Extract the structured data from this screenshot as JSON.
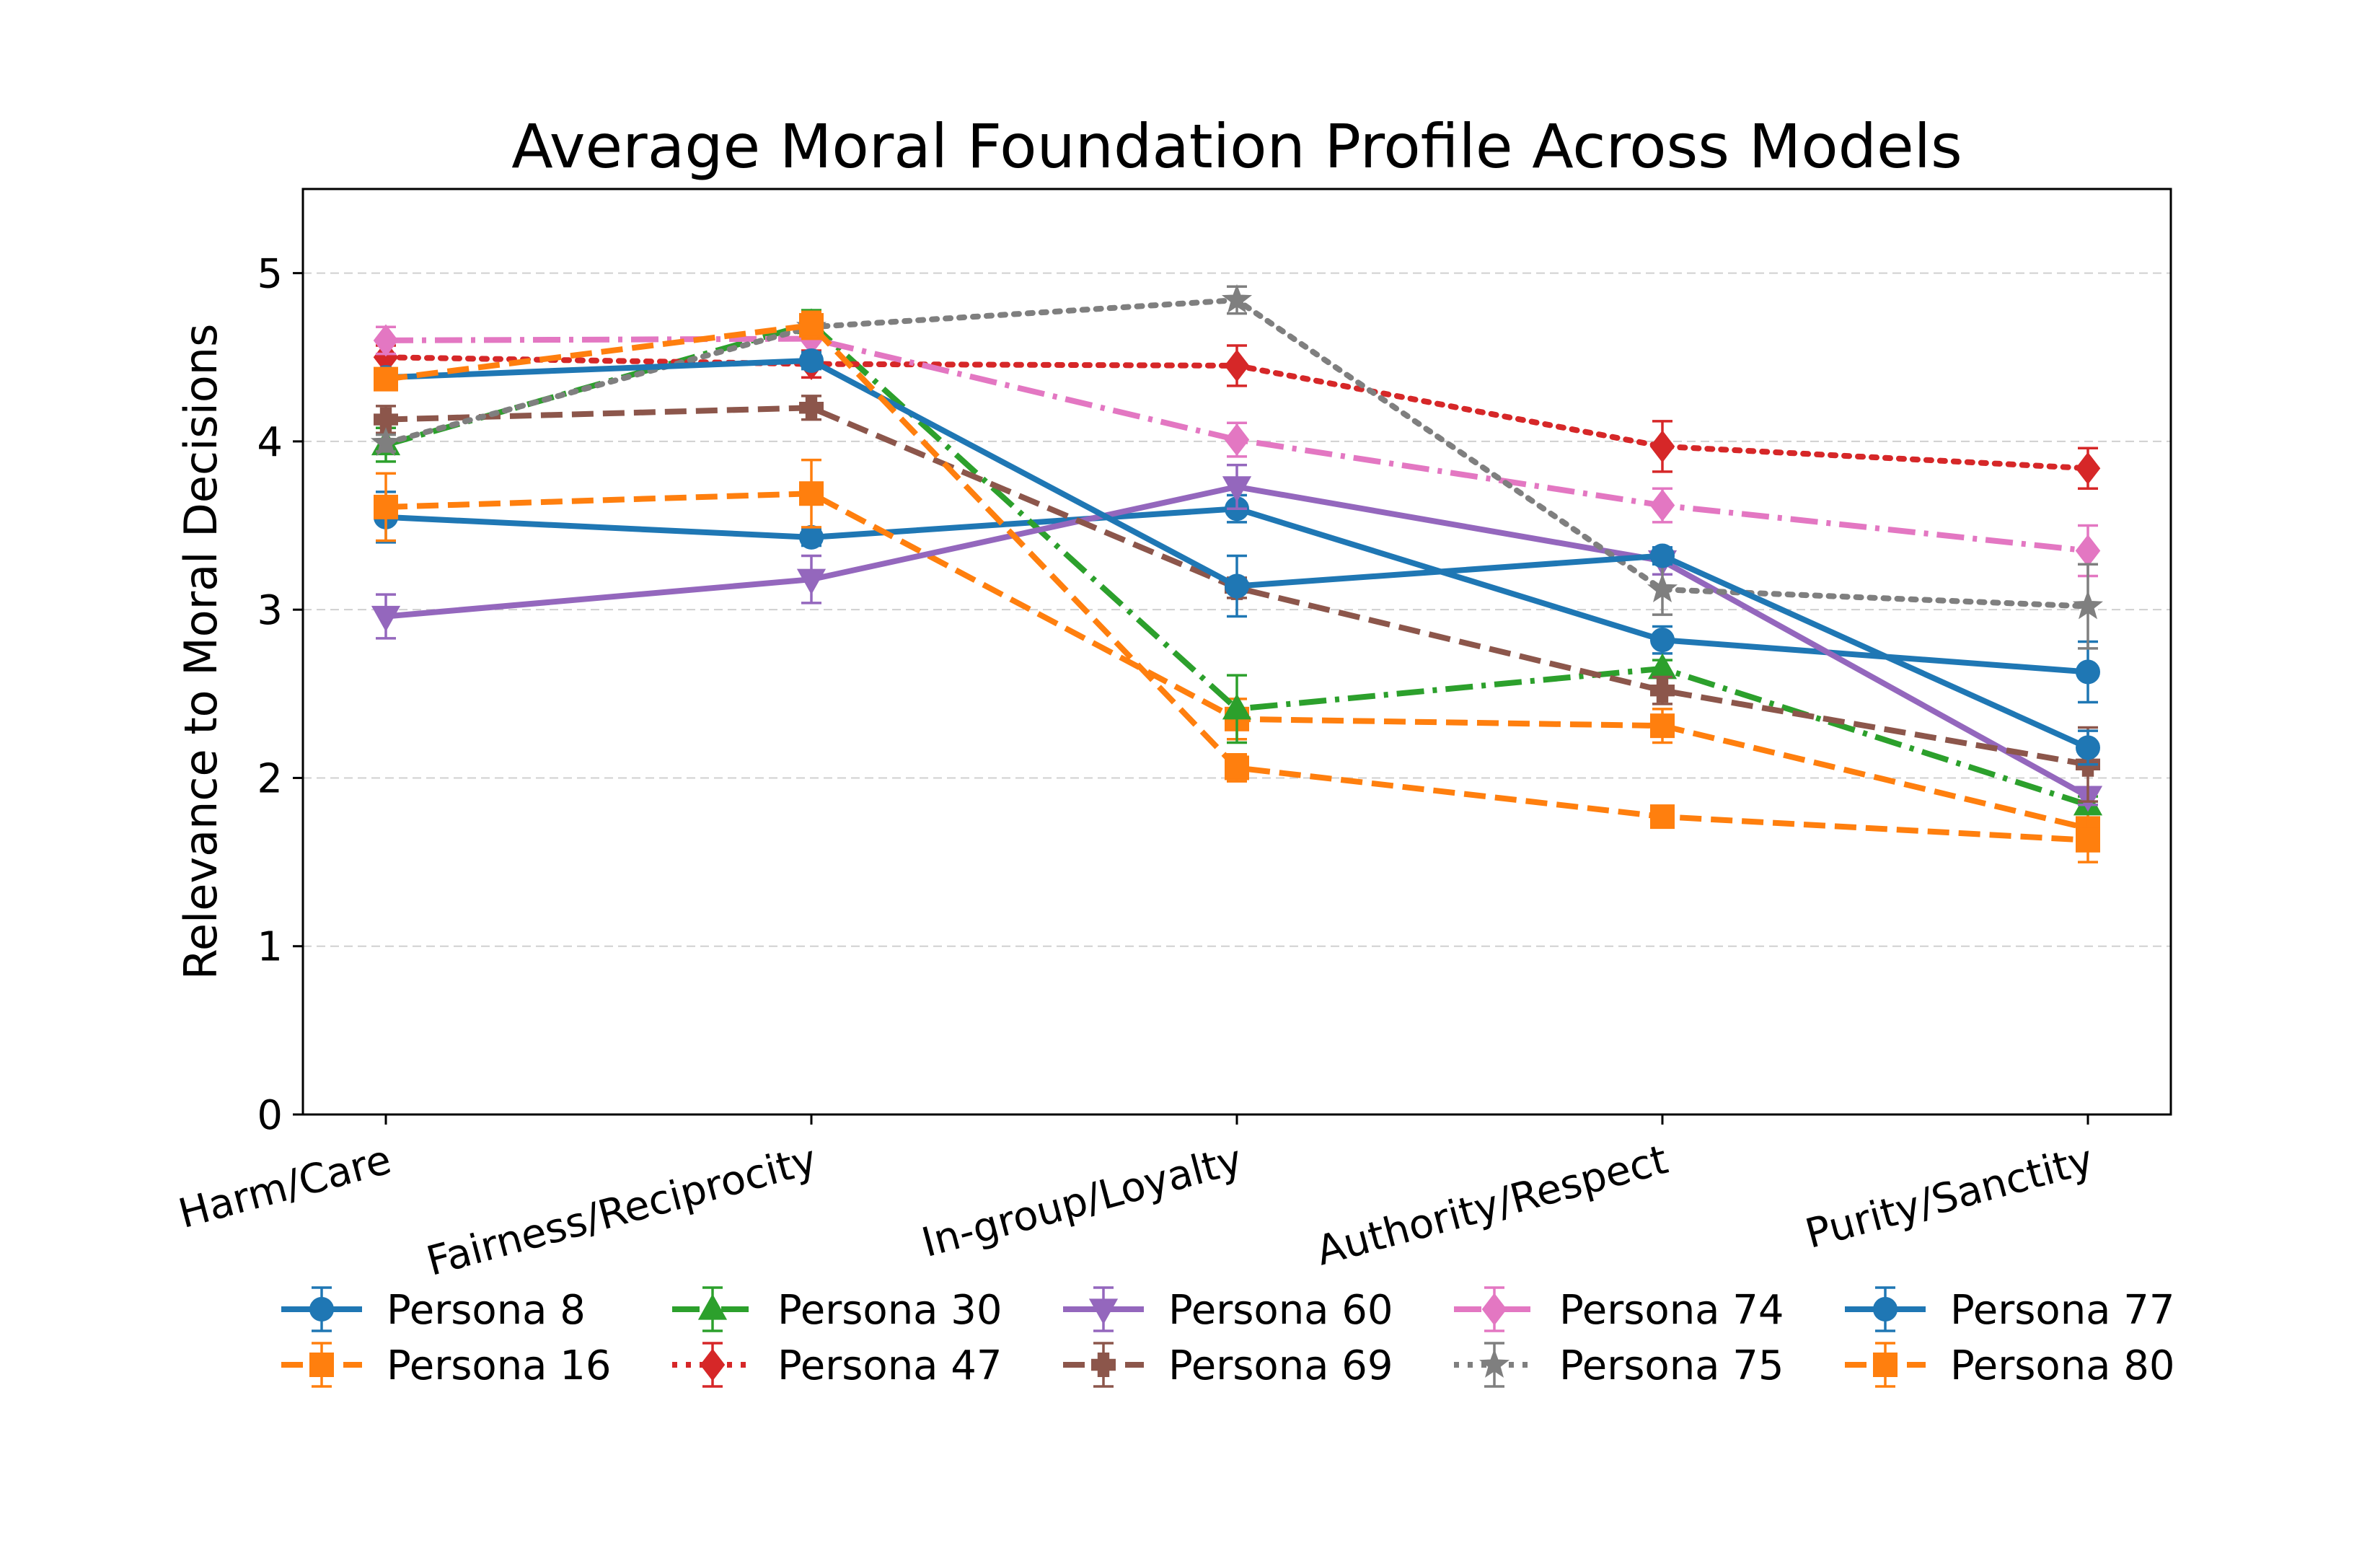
{
  "chart_data": {
    "type": "line",
    "title": "Average Moral Foundation Profile Across Models",
    "xlabel": "",
    "ylabel": "Relevance to Moral Decisions",
    "categories": [
      "Harm/Care",
      "Fairness/Reciprocity",
      "In-group/Loyalty",
      "Authority/Respect",
      "Purity/Sanctity"
    ],
    "ylim": [
      0,
      5.5
    ],
    "yticks": [
      0,
      1,
      2,
      3,
      4,
      5
    ],
    "grid": "horizontal dashed",
    "legend_position": "below plot, 5 columns",
    "series": [
      {
        "name": "Persona 8",
        "color": "#1f77b4",
        "marker": "circle",
        "linestyle": "solid",
        "values": [
          3.55,
          3.43,
          3.6,
          2.82,
          2.63
        ],
        "errors": [
          0.15,
          0.05,
          0.08,
          0.08,
          0.18
        ]
      },
      {
        "name": "Persona 16",
        "color": "#ff7f0e",
        "marker": "square",
        "linestyle": "dashed",
        "values": [
          3.61,
          3.69,
          2.35,
          2.31,
          1.7
        ],
        "errors": [
          0.2,
          0.2,
          0.12,
          0.1,
          0.1
        ]
      },
      {
        "name": "Persona 30",
        "color": "#2ca02c",
        "marker": "triangle-up",
        "linestyle": "dashdot",
        "values": [
          3.98,
          4.7,
          2.41,
          2.65,
          1.84
        ],
        "errors": [
          0.1,
          0.08,
          0.2,
          0.05,
          0.05
        ]
      },
      {
        "name": "Persona 47",
        "color": "#d62728",
        "marker": "diamond",
        "linestyle": "dotted",
        "values": [
          4.5,
          4.46,
          4.45,
          3.97,
          3.84
        ],
        "errors": [
          0.07,
          0.08,
          0.12,
          0.15,
          0.12
        ]
      },
      {
        "name": "Persona 60",
        "color": "#9467bd",
        "marker": "triangle-down",
        "linestyle": "solid",
        "values": [
          2.96,
          3.18,
          3.73,
          3.29,
          1.89
        ],
        "errors": [
          0.13,
          0.14,
          0.13,
          0.08,
          0.05
        ]
      },
      {
        "name": "Persona 69",
        "color": "#8c564b",
        "marker": "plus",
        "linestyle": "dashed",
        "values": [
          4.13,
          4.2,
          3.13,
          2.52,
          2.08
        ],
        "errors": [
          0.08,
          0.07,
          0.06,
          0.08,
          0.22
        ]
      },
      {
        "name": "Persona 74",
        "color": "#e377c2",
        "marker": "diamond",
        "linestyle": "dashdot",
        "values": [
          4.6,
          4.61,
          4.01,
          3.62,
          3.35
        ],
        "errors": [
          0.08,
          0.08,
          0.1,
          0.1,
          0.15
        ]
      },
      {
        "name": "Persona 75",
        "color": "#7f7f7f",
        "marker": "star",
        "linestyle": "dotted",
        "values": [
          3.99,
          4.68,
          4.84,
          3.12,
          3.02
        ],
        "errors": [
          0.05,
          0.05,
          0.08,
          0.15,
          0.25
        ]
      },
      {
        "name": "Persona 77",
        "color": "#1f77b4",
        "marker": "circle",
        "linestyle": "solid",
        "values": [
          4.38,
          4.48,
          3.14,
          3.32,
          2.18
        ],
        "errors": [
          0.05,
          0.05,
          0.18,
          0.05,
          0.1
        ]
      },
      {
        "name": "Persona 80",
        "color": "#ff7f0e",
        "marker": "square",
        "linestyle": "dashed",
        "values": [
          4.37,
          4.69,
          2.06,
          1.77,
          1.63
        ],
        "errors": [
          0.05,
          0.08,
          0.08,
          0.05,
          0.13
        ]
      }
    ]
  }
}
